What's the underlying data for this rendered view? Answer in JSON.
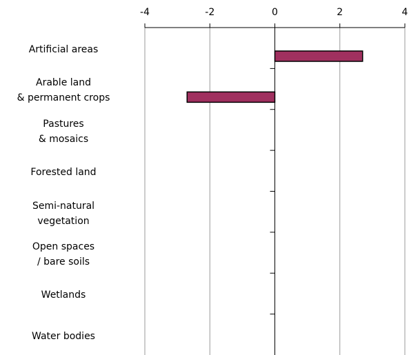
{
  "chart_data": {
    "type": "hbar",
    "categories": [
      "Artificial areas",
      "Arable land\n& permanent crops",
      "Pastures\n& mosaics",
      "Forested land",
      "Semi-natural\nvegetation",
      "Open spaces\n/ bare soils",
      "Wetlands",
      "Water bodies"
    ],
    "values": [
      2.7,
      -2.7,
      0,
      0,
      0,
      0,
      0,
      0
    ],
    "color": "#a0305f",
    "xlim": [
      -4,
      4
    ],
    "xticks": [
      -4,
      -2,
      0,
      2,
      4
    ],
    "grid": true
  }
}
